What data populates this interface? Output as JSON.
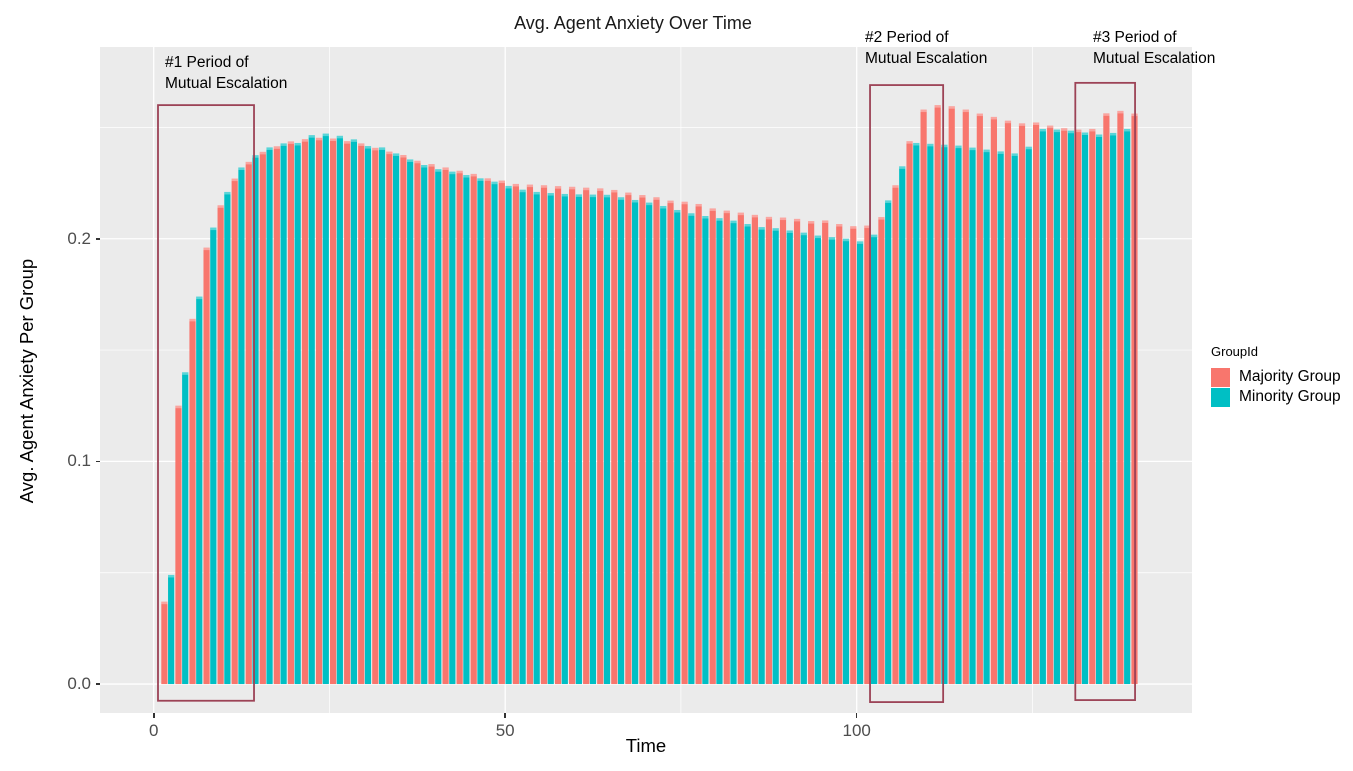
{
  "chart_data": {
    "type": "bar",
    "title": "Avg. Agent Anxiety Over Time",
    "xlabel": "Time",
    "ylabel": "Avg. Agent Anxiety Per Group",
    "x_domain": [
      -7.64,
      147.7
    ],
    "y_domain": [
      -0.013,
      0.2861
    ],
    "x_major_ticks": [
      0,
      50,
      100
    ],
    "x_tick_labels": [
      "0",
      "50",
      "100"
    ],
    "x_minor_gridlines": [
      25,
      75,
      125
    ],
    "y_major_ticks": [
      0,
      0.1,
      0.2
    ],
    "y_tick_labels": [
      "0.0",
      "0.1",
      "0.2"
    ],
    "y_minor_gridlines": [
      0.05,
      0.15,
      0.25
    ],
    "panel_bg": "#EBEBEB",
    "gridline_color": "#FFFFFF",
    "legend_position": "right",
    "grid": true,
    "bar_half_width": 0.88,
    "x": [
      2,
      4,
      6,
      8,
      10,
      12,
      14,
      16,
      18,
      20,
      22,
      24,
      26,
      28,
      30,
      32,
      34,
      36,
      38,
      40,
      42,
      44,
      46,
      48,
      50,
      52,
      54,
      56,
      58,
      60,
      62,
      64,
      66,
      68,
      70,
      72,
      74,
      76,
      78,
      80,
      82,
      84,
      86,
      88,
      90,
      92,
      94,
      96,
      98,
      100,
      102,
      104,
      106,
      108,
      110,
      112,
      114,
      116,
      118,
      120,
      122,
      124,
      126,
      128,
      130,
      132,
      134,
      136,
      138,
      140
    ],
    "series": [
      {
        "name": "Majority Group",
        "color": "#F8766D",
        "values": [
          0.037,
          0.125,
          0.164,
          0.196,
          0.215,
          0.227,
          0.2345,
          0.239,
          0.2415,
          0.2437,
          0.2447,
          0.2453,
          0.245,
          0.2438,
          0.2428,
          0.2408,
          0.2391,
          0.2376,
          0.235,
          0.2335,
          0.232,
          0.2305,
          0.2291,
          0.2271,
          0.2261,
          0.2246,
          0.2243,
          0.224,
          0.2236,
          0.2233,
          0.2229,
          0.2226,
          0.2219,
          0.2207,
          0.2196,
          0.2186,
          0.2171,
          0.2166,
          0.2156,
          0.2136,
          0.2126,
          0.2117,
          0.2107,
          0.2098,
          0.2095,
          0.2089,
          0.2079,
          0.2082,
          0.2066,
          0.2056,
          0.2059,
          0.2097,
          0.224,
          0.2438,
          0.258,
          0.26,
          0.2595,
          0.258,
          0.2562,
          0.2547,
          0.253,
          0.2518,
          0.2522,
          0.2508,
          0.2496,
          0.249,
          0.2493,
          0.2563,
          0.2574,
          0.2562
        ]
      },
      {
        "name": "Minority Group",
        "color": "#00BFC4",
        "values": [
          0.049,
          0.14,
          0.174,
          0.205,
          0.221,
          0.232,
          0.2375,
          0.241,
          0.2428,
          0.243,
          0.2465,
          0.2472,
          0.2462,
          0.2446,
          0.2416,
          0.241,
          0.2383,
          0.2356,
          0.2331,
          0.2312,
          0.2301,
          0.2286,
          0.2271,
          0.2256,
          0.2237,
          0.222,
          0.221,
          0.2205,
          0.2201,
          0.2199,
          0.2198,
          0.2197,
          0.2186,
          0.2174,
          0.2162,
          0.2147,
          0.2129,
          0.2114,
          0.2102,
          0.2092,
          0.2081,
          0.2066,
          0.2052,
          0.2047,
          0.2037,
          0.2027,
          0.2014,
          0.2007,
          0.2,
          0.1988,
          0.2018,
          0.2172,
          0.2325,
          0.243,
          0.2426,
          0.2422,
          0.2418,
          0.2409,
          0.24,
          0.2392,
          0.2383,
          0.2413,
          0.2493,
          0.249,
          0.2485,
          0.2477,
          0.2468,
          0.2475,
          0.2493,
          null
        ]
      }
    ],
    "annotation_boxes": [
      {
        "x0": 0.61,
        "x1": 14.27,
        "y0": -0.0075,
        "y1": 0.26,
        "color": "#9C4356"
      },
      {
        "x0": 101.9,
        "x1": 112.3,
        "y0": -0.0081,
        "y1": 0.269,
        "color": "#9C4356"
      },
      {
        "x0": 131.1,
        "x1": 139.6,
        "y0": -0.0072,
        "y1": 0.27,
        "color": "#9C4356"
      }
    ]
  },
  "annotations": [
    {
      "lines": [
        "#1 Period of",
        "Mutual Escalation"
      ]
    },
    {
      "lines": [
        "#2 Period of",
        "Mutual Escalation"
      ]
    },
    {
      "lines": [
        "#3 Period of",
        "Mutual Escalation"
      ]
    }
  ],
  "legend": {
    "title": "GroupId",
    "items": [
      {
        "label": "Majority Group",
        "color": "#F8766D"
      },
      {
        "label": "Minority Group",
        "color": "#00BFC4"
      }
    ]
  }
}
